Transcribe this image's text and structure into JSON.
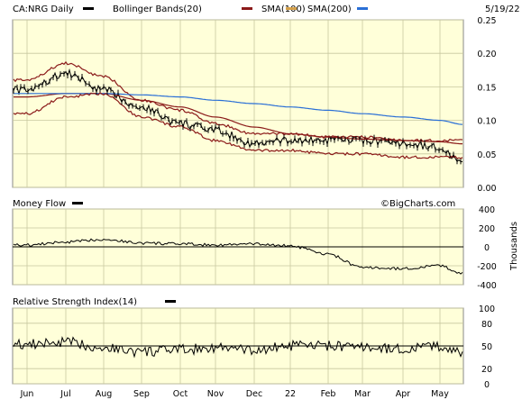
{
  "header": {
    "symbol_label": "CA:NRG Daily",
    "bollinger_label": "Bollinger Bands(20)",
    "sma100_label": "SMA(100)",
    "sma200_label": "SMA(200)",
    "date": "5/19/22"
  },
  "watermark": "©BigCharts.com",
  "colors": {
    "price": "#000000",
    "bollinger": "#8b1a1a",
    "sma100": "#8b1a1a",
    "sma200": "#d4a04a",
    "sma_blue": "#2a6fd6",
    "panel_bg": "#ffffd9",
    "grid": "#c8c8a0"
  },
  "x_labels": [
    "Jun",
    "Jul",
    "Aug",
    "Sep",
    "Oct",
    "Nov",
    "Dec",
    "22",
    "Feb",
    "Mar",
    "Apr",
    "May"
  ],
  "chart_data": [
    {
      "type": "line",
      "panel": "price",
      "title": "CA:NRG Daily",
      "ylim": [
        0,
        0.25
      ],
      "y_ticks": [
        "0.25",
        "0.20",
        "0.15",
        "0.10",
        "0.05",
        "0.00"
      ],
      "grid": true,
      "series": [
        {
          "name": "CA:NRG Daily",
          "x": [
            "Jun",
            "Jul",
            "Aug",
            "Sep",
            "Oct",
            "Nov",
            "Dec",
            "22",
            "Feb",
            "Mar",
            "Apr",
            "May",
            "5/19/22"
          ],
          "values": [
            0.145,
            0.17,
            0.145,
            0.12,
            0.095,
            0.085,
            0.065,
            0.07,
            0.07,
            0.07,
            0.065,
            0.06,
            0.035
          ]
        },
        {
          "name": "Bollinger Bands(20)",
          "x": [
            "Jun",
            "Jul",
            "Aug",
            "Sep",
            "Oct",
            "Nov",
            "Dec",
            "22",
            "Feb",
            "Mar",
            "Apr",
            "May",
            "5/19/22"
          ],
          "values": [
            0.16,
            0.185,
            0.165,
            0.13,
            0.115,
            0.095,
            0.08,
            0.08,
            0.075,
            0.075,
            0.07,
            0.07,
            0.07
          ]
        },
        {
          "name": "SMA(100)",
          "x": [
            "Jun",
            "Jul",
            "Aug",
            "Sep",
            "Oct",
            "Nov",
            "Dec",
            "22",
            "Feb",
            "Mar",
            "Apr",
            "May",
            "5/19/22"
          ],
          "values": [
            0.135,
            0.14,
            0.14,
            0.13,
            0.12,
            0.105,
            0.09,
            0.08,
            0.075,
            0.072,
            0.07,
            0.068,
            0.065
          ]
        },
        {
          "name": "SMA(200)",
          "x": [
            "Jun",
            "Jul",
            "Aug",
            "Sep",
            "Oct",
            "Nov",
            "Dec",
            "22",
            "Feb",
            "Mar",
            "Apr",
            "May",
            "5/19/22"
          ],
          "values": [
            0.14,
            0.14,
            0.14,
            0.138,
            0.135,
            0.13,
            0.125,
            0.12,
            0.115,
            0.11,
            0.105,
            0.1,
            0.094
          ]
        }
      ]
    },
    {
      "type": "line",
      "panel": "money_flow",
      "title": "Money Flow",
      "ylabel": "Thousands",
      "ylim": [
        -400,
        400
      ],
      "y_ticks": [
        "400",
        "200",
        "0",
        "-200",
        "-400"
      ],
      "grid": true,
      "series": [
        {
          "name": "Money Flow",
          "x": [
            "Jun",
            "Jul",
            "Aug",
            "Sep",
            "Oct",
            "Nov",
            "Dec",
            "22",
            "Feb",
            "Mar",
            "Apr",
            "May",
            "5/19/22"
          ],
          "values": [
            20,
            50,
            80,
            40,
            30,
            20,
            30,
            10,
            -80,
            -220,
            -230,
            -200,
            -280
          ]
        }
      ]
    },
    {
      "type": "line",
      "panel": "rsi",
      "title": "Relative Strength Index(14)",
      "ylim": [
        0,
        100
      ],
      "y_ticks": [
        "100",
        "80",
        "50",
        "20",
        "0"
      ],
      "grid": true,
      "series": [
        {
          "name": "Relative Strength Index(14)",
          "x": [
            "Jun",
            "Jul",
            "Aug",
            "Sep",
            "Oct",
            "Nov",
            "Dec",
            "22",
            "Feb",
            "Mar",
            "Apr",
            "May",
            "5/19/22"
          ],
          "values": [
            52,
            55,
            48,
            42,
            45,
            48,
            44,
            50,
            50,
            48,
            46,
            50,
            40
          ]
        }
      ]
    }
  ],
  "panels": {
    "money_flow_label": "Money Flow",
    "rsi_label": "Relative Strength Index(14)",
    "money_flow_ylabel": "Thousands"
  }
}
